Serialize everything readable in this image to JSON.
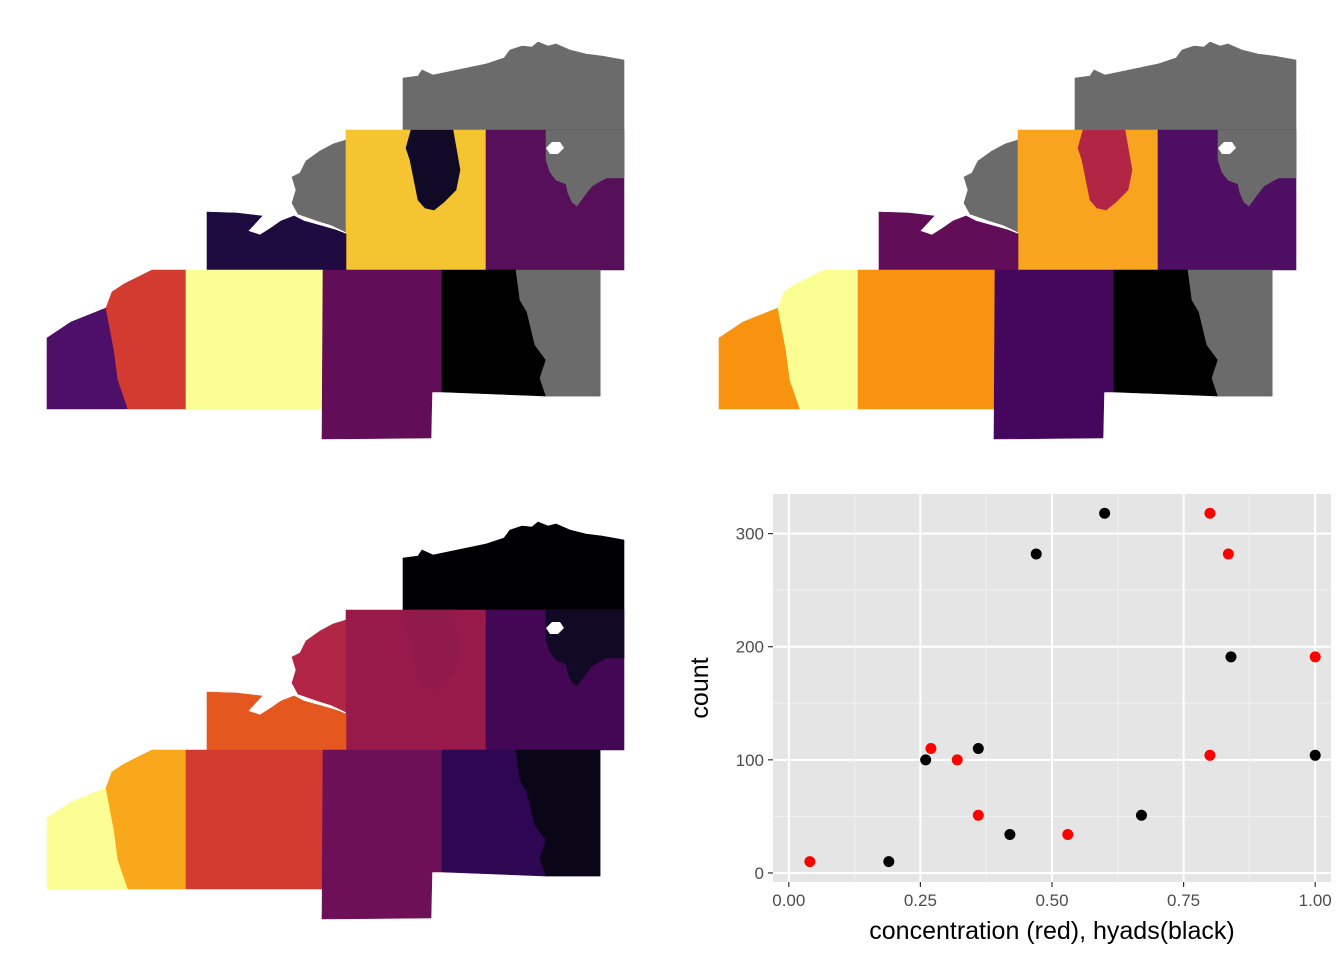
{
  "maps": [
    {
      "name": "map-top-left",
      "regions": [
        {
          "id": "north-west",
          "color": "#6b6b6b"
        },
        {
          "id": "north-east",
          "color": "#6b6b6b"
        },
        {
          "id": "west-neck",
          "color": "#6b6b6b"
        },
        {
          "id": "center-block",
          "color": "#f5c431"
        },
        {
          "id": "center-inner",
          "color": "#110a26"
        },
        {
          "id": "east-middle",
          "color": "#560f58"
        },
        {
          "id": "east-middle-gray",
          "color": "#6b6b6b"
        },
        {
          "id": "west-step",
          "color": "#1e0b3f"
        },
        {
          "id": "far-west",
          "color": "#4e0f68"
        },
        {
          "id": "west-2",
          "color": "#d33b30"
        },
        {
          "id": "south-center-left",
          "color": "#fbfe93"
        },
        {
          "id": "south-center",
          "color": "#620d58"
        },
        {
          "id": "south-east",
          "color": "#000000"
        },
        {
          "id": "south-east-gray",
          "color": "#6b6b6b"
        }
      ]
    },
    {
      "name": "map-top-right",
      "regions": [
        {
          "id": "north-west",
          "color": "#6b6b6b"
        },
        {
          "id": "north-east",
          "color": "#6b6b6b"
        },
        {
          "id": "west-neck",
          "color": "#6b6b6b"
        },
        {
          "id": "center-block",
          "color": "#f8a41e"
        },
        {
          "id": "center-inner",
          "color": "#b32545"
        },
        {
          "id": "east-middle",
          "color": "#4d0e63"
        },
        {
          "id": "east-middle-gray",
          "color": "#6b6b6b"
        },
        {
          "id": "west-step",
          "color": "#620d58"
        },
        {
          "id": "far-west",
          "color": "#f7930f"
        },
        {
          "id": "west-2",
          "color": "#fbfe93"
        },
        {
          "id": "south-center-left",
          "color": "#f7930f"
        },
        {
          "id": "south-center",
          "color": "#45075e"
        },
        {
          "id": "south-east",
          "color": "#000000"
        },
        {
          "id": "south-east-gray",
          "color": "#6b6b6b"
        }
      ]
    },
    {
      "name": "map-bottom-left",
      "regions": [
        {
          "id": "north-west",
          "color": "#000004"
        },
        {
          "id": "north-east",
          "color": "#000004"
        },
        {
          "id": "west-neck",
          "color": "#b32545"
        },
        {
          "id": "center-block",
          "color": "#971a4a"
        },
        {
          "id": "center-inner",
          "color": "#8f1a4b"
        },
        {
          "id": "east-middle",
          "color": "#430755"
        },
        {
          "id": "east-middle-gray",
          "color": "#120a25"
        },
        {
          "id": "west-step",
          "color": "#e4571f"
        },
        {
          "id": "far-west",
          "color": "#fbfe93"
        },
        {
          "id": "west-2",
          "color": "#f8a81a"
        },
        {
          "id": "south-center-left",
          "color": "#d33b30"
        },
        {
          "id": "south-center",
          "color": "#6d1058"
        },
        {
          "id": "south-east",
          "color": "#2e0753"
        },
        {
          "id": "south-east-gray",
          "color": "#0a0617"
        }
      ]
    }
  ],
  "chart_data": {
    "type": "scatter",
    "title": "",
    "xlabel": "concentration (red), hyads(black)",
    "ylabel": "count",
    "xlim": [
      -0.03,
      1.03
    ],
    "ylim": [
      -8,
      335
    ],
    "x_ticks": [
      {
        "value": 0,
        "label": "0.00"
      },
      {
        "value": 0.25,
        "label": "0.25"
      },
      {
        "value": 0.5,
        "label": "0.50"
      },
      {
        "value": 0.75,
        "label": "0.75"
      },
      {
        "value": 1,
        "label": "1.00"
      }
    ],
    "y_ticks": [
      {
        "value": 0,
        "label": "0"
      },
      {
        "value": 100,
        "label": "100"
      },
      {
        "value": 200,
        "label": "200"
      },
      {
        "value": 300,
        "label": "300"
      }
    ],
    "minor_x": [
      0.125,
      0.375,
      0.625,
      0.875
    ],
    "minor_y": [
      50,
      150,
      250
    ],
    "grid": true,
    "panel_color": "#e5e5e5",
    "series": [
      {
        "name": "concentration",
        "color": "#ff0000",
        "points": [
          {
            "x": 0.04,
            "y": 10
          },
          {
            "x": 0.27,
            "y": 110
          },
          {
            "x": 0.32,
            "y": 100
          },
          {
            "x": 0.36,
            "y": 51
          },
          {
            "x": 0.53,
            "y": 34
          },
          {
            "x": 0.8,
            "y": 318
          },
          {
            "x": 0.8,
            "y": 104
          },
          {
            "x": 0.835,
            "y": 282
          },
          {
            "x": 1.0,
            "y": 191
          }
        ]
      },
      {
        "name": "hyads",
        "color": "#000000",
        "points": [
          {
            "x": 0.19,
            "y": 10
          },
          {
            "x": 0.26,
            "y": 100
          },
          {
            "x": 0.36,
            "y": 110
          },
          {
            "x": 0.42,
            "y": 34
          },
          {
            "x": 0.47,
            "y": 282
          },
          {
            "x": 0.6,
            "y": 318
          },
          {
            "x": 0.67,
            "y": 51
          },
          {
            "x": 0.84,
            "y": 191
          },
          {
            "x": 1.0,
            "y": 104
          }
        ]
      }
    ]
  }
}
